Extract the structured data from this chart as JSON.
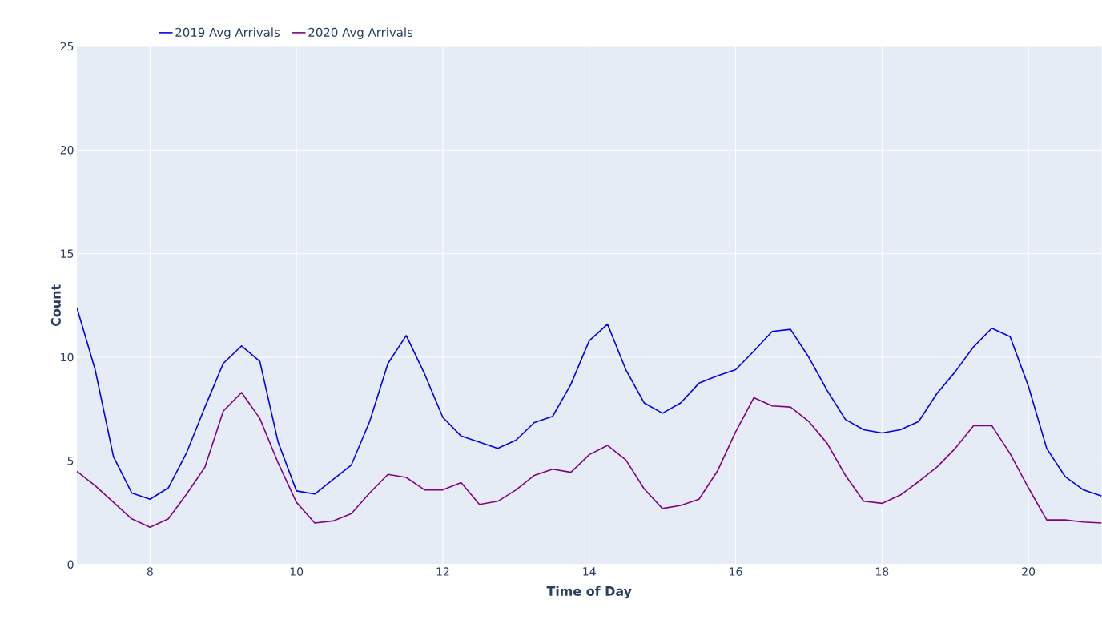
{
  "chart_data": {
    "type": "line",
    "xlabel": "Time of Day",
    "ylabel": "Count",
    "x": [
      7,
      7.25,
      7.5,
      7.75,
      8,
      8.25,
      8.5,
      8.75,
      9,
      9.25,
      9.5,
      9.75,
      10,
      10.25,
      10.5,
      10.75,
      11,
      11.25,
      11.5,
      11.75,
      12,
      12.25,
      12.5,
      12.75,
      13,
      13.25,
      13.5,
      13.75,
      14,
      14.25,
      14.5,
      14.75,
      15,
      15.25,
      15.5,
      15.75,
      16,
      16.25,
      16.5,
      16.75,
      17,
      17.25,
      17.5,
      17.75,
      18,
      18.25,
      18.5,
      18.75,
      19,
      19.25,
      19.5,
      19.75,
      20,
      20.25,
      20.5,
      20.75,
      21
    ],
    "series": [
      {
        "name": "2019 Avg Arrivals",
        "color": "#0000ee",
        "values": [
          12.4,
          9.4,
          5.2,
          3.45,
          3.15,
          3.7,
          5.4,
          7.6,
          9.7,
          10.55,
          9.8,
          5.9,
          3.55,
          3.4,
          4.1,
          4.8,
          6.9,
          9.7,
          11.05,
          9.2,
          7.1,
          6.2,
          5.9,
          5.6,
          6.0,
          6.85,
          7.15,
          8.7,
          10.8,
          11.6,
          9.4,
          7.8,
          7.3,
          7.8,
          8.75,
          9.1,
          9.4,
          10.3,
          11.25,
          11.35,
          10.0,
          8.4,
          7.0,
          6.5,
          6.35,
          6.5,
          6.9,
          8.25,
          9.3,
          10.5,
          11.4,
          11.0,
          8.6,
          5.6,
          4.25,
          3.6,
          3.3
        ]
      },
      {
        "name": "2020 Avg Arrivals",
        "color": "#800080",
        "values": [
          4.5,
          3.8,
          3.0,
          2.2,
          1.8,
          2.2,
          3.4,
          4.7,
          7.4,
          8.3,
          7.05,
          4.9,
          3.0,
          2.0,
          2.1,
          2.45,
          3.45,
          4.35,
          4.2,
          3.6,
          3.6,
          3.95,
          2.9,
          3.05,
          3.6,
          4.3,
          4.6,
          4.45,
          5.3,
          5.75,
          5.05,
          3.65,
          2.7,
          2.85,
          3.15,
          4.5,
          6.4,
          8.05,
          7.65,
          7.6,
          6.9,
          5.85,
          4.3,
          3.05,
          2.95,
          3.35,
          4.0,
          4.7,
          5.6,
          6.7,
          6.7,
          5.35,
          3.7,
          2.15,
          2.15,
          2.05,
          2.0
        ]
      }
    ],
    "xlim": [
      7,
      21
    ],
    "ylim": [
      0,
      25
    ],
    "xticks": [
      8,
      10,
      12,
      14,
      16,
      18,
      20
    ],
    "yticks": [
      0,
      5,
      10,
      15,
      20,
      25
    ],
    "grid": true,
    "legend": "top left",
    "line_style": "solid",
    "marker": "none"
  }
}
